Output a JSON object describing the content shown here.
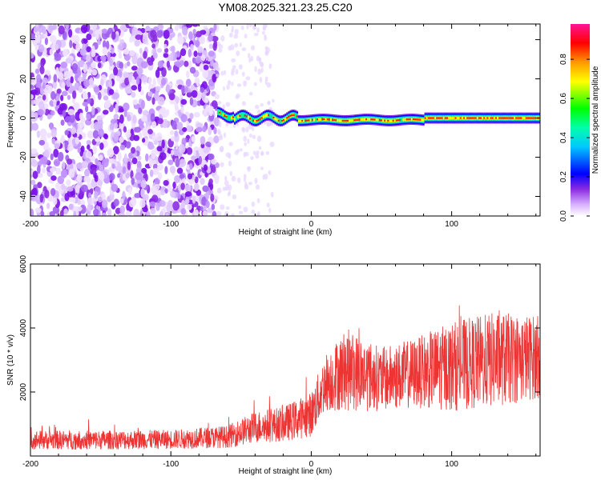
{
  "title": "YM08.2025.321.23.25.C20",
  "colors": {
    "background": "#ffffff",
    "axis": "#000000",
    "snr_line": "#ee3333"
  },
  "chart_data": [
    {
      "type": "heatmap",
      "xlabel": "Height of straight line (km)",
      "ylabel": "Frequency (Hz)",
      "xlim": [
        -200,
        163
      ],
      "ylim": [
        -50,
        48
      ],
      "x_ticks": [
        -200,
        -100,
        0,
        100
      ],
      "y_ticks": [
        -40,
        -20,
        0,
        20,
        40
      ],
      "colorbar": {
        "label": "Normalized spectral amplitude",
        "range": [
          0,
          0.98
        ],
        "ticks": [
          0.0,
          0.2,
          0.4,
          0.6,
          0.8
        ],
        "colormap": [
          "#ffffff",
          "#8a2be2",
          "#0000ff",
          "#00ffff",
          "#00ff00",
          "#ffff00",
          "#ff8800",
          "#ff0000",
          "#ff1493"
        ]
      },
      "features": [
        {
          "description": "noise",
          "x_range": [
            -200,
            -67
          ],
          "freq_range": [
            -50,
            48
          ],
          "amplitude": 0.1
        },
        {
          "description": "signal",
          "x_range": [
            -67,
            163
          ],
          "freq_range": [
            -3,
            3
          ],
          "center_freq_hz": 0,
          "amplitude_peak": 0.95
        }
      ]
    },
    {
      "type": "line",
      "xlabel": "Height of straight line (km)",
      "ylabel": "SNR (10 * v/v)",
      "xlim": [
        -200,
        163
      ],
      "ylim": [
        0,
        6000
      ],
      "x_ticks": [
        -200,
        -100,
        0,
        100
      ],
      "y_ticks": [
        2000,
        4000,
        6000
      ],
      "series": [
        {
          "color": "#ee3333",
          "envelope": [
            {
              "x": -200,
              "mean": 500,
              "amplitude": 300
            },
            {
              "x": -150,
              "mean": 500,
              "amplitude": 300
            },
            {
              "x": -100,
              "mean": 520,
              "amplitude": 300
            },
            {
              "x": -60,
              "mean": 600,
              "amplitude": 350
            },
            {
              "x": -40,
              "mean": 900,
              "amplitude": 500
            },
            {
              "x": -20,
              "mean": 1000,
              "amplitude": 550
            },
            {
              "x": 0,
              "mean": 1300,
              "amplitude": 700
            },
            {
              "x": 10,
              "mean": 2300,
              "amplitude": 900
            },
            {
              "x": 25,
              "mean": 2700,
              "amplitude": 1300
            },
            {
              "x": 50,
              "mean": 2400,
              "amplitude": 1000
            },
            {
              "x": 75,
              "mean": 2600,
              "amplitude": 1100
            },
            {
              "x": 100,
              "mean": 2800,
              "amplitude": 1400
            },
            {
              "x": 130,
              "mean": 3000,
              "amplitude": 1500
            },
            {
              "x": 163,
              "mean": 3100,
              "amplitude": 1300
            }
          ]
        }
      ]
    }
  ]
}
